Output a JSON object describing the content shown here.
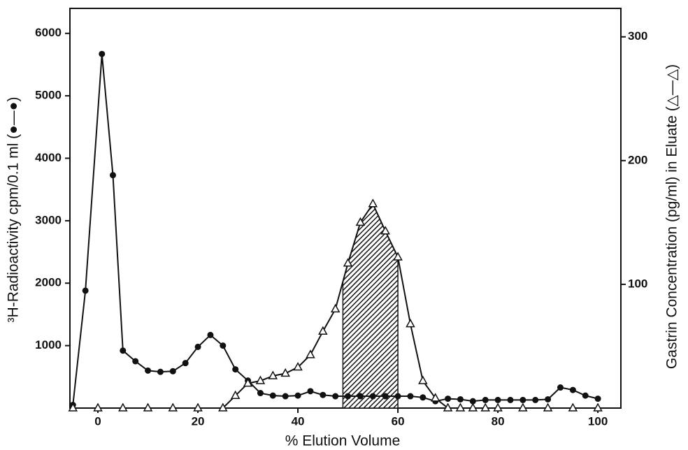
{
  "chart_data": {
    "type": "line",
    "x_label": "% Elution  Volume",
    "y_label": "³H-Radioactivity cpm/0.1 ml (●—●)",
    "y2_label": "Gastrin Concentration (pg/ml) in Eluate (△—△)",
    "xlim": [
      -5.6,
      104.6
    ],
    "xticks": [
      0,
      20,
      40,
      60,
      80,
      100
    ],
    "ylim": [
      0,
      6400
    ],
    "yticks": [
      1000,
      2000,
      3000,
      4000,
      5000,
      6000
    ],
    "y2lim": [
      0,
      323
    ],
    "y2ticks": [
      100,
      200,
      300
    ],
    "shade_x": [
      49,
      60
    ],
    "color": "#111111",
    "series": [
      {
        "marker": "circle",
        "color": "#111111",
        "x": [
          -5,
          -2.5,
          0.8,
          3,
          5,
          7.5,
          10,
          12.5,
          15,
          17.5,
          20,
          22.5,
          25,
          27.5,
          30,
          32.5,
          35,
          37.5,
          40,
          42.5,
          45,
          47.5,
          50,
          52.5,
          55,
          57.5,
          60,
          62.5,
          65,
          67.5,
          70,
          72.5,
          75,
          77.5,
          80,
          82.5,
          85,
          87.5,
          90,
          92.5,
          95,
          97.5,
          100
        ],
        "values": [
          50,
          1880,
          5670,
          3730,
          920,
          750,
          600,
          580,
          590,
          720,
          980,
          1170,
          1000,
          620,
          440,
          240,
          200,
          190,
          200,
          270,
          210,
          190,
          190,
          190,
          190,
          190,
          190,
          190,
          170,
          110,
          150,
          140,
          110,
          130,
          130,
          130,
          130,
          130,
          140,
          330,
          290,
          200,
          150
        ]
      },
      {
        "marker": "triangle",
        "color": "#111111",
        "axis": "y2",
        "x": [
          -5,
          0,
          5,
          10,
          15,
          20,
          25,
          27.5,
          30,
          32.5,
          35,
          37.5,
          40,
          42.5,
          45,
          47.5,
          50,
          52.5,
          55,
          57.5,
          60,
          62.5,
          65,
          67.5,
          70,
          72.5,
          75,
          77.5,
          80,
          85,
          90,
          95,
          100
        ],
        "values": [
          0,
          0,
          0,
          0,
          0,
          0,
          0,
          10,
          20,
          22,
          26,
          28,
          33,
          43,
          62,
          80,
          117,
          150,
          165,
          143,
          122,
          68,
          22,
          8,
          0,
          0,
          0,
          0,
          0,
          0,
          0,
          0,
          0
        ]
      }
    ]
  }
}
